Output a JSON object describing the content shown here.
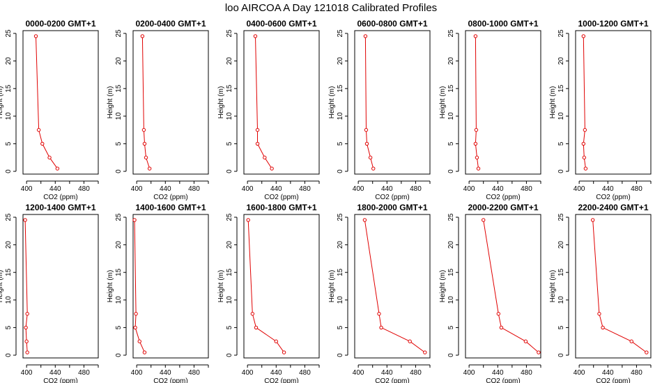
{
  "chart_data": {
    "type": "line",
    "title": "loo AIRCOA A  Day 121018  Calibrated Profiles",
    "xlabel": "CO2 (ppm)",
    "ylabel": "Height (m)",
    "xlim": [
      395,
      500
    ],
    "ylim": [
      -0.5,
      25.5
    ],
    "xticks": [
      400,
      440,
      480
    ],
    "yticks": [
      0,
      5,
      10,
      15,
      20,
      25
    ],
    "grid": false,
    "line_color": "#e00000",
    "layout": {
      "rows": 2,
      "cols": 6
    },
    "panels": [
      {
        "title": "0000-0200 GMT+1",
        "points": [
          [
            413,
            24.5
          ],
          [
            417,
            7.5
          ],
          [
            422,
            5
          ],
          [
            432,
            2.5
          ],
          [
            443,
            0.5
          ]
        ]
      },
      {
        "title": "0200-0400 GMT+1",
        "points": [
          [
            408,
            24.5
          ],
          [
            410,
            7.5
          ],
          [
            411,
            5
          ],
          [
            413,
            2.5
          ],
          [
            418,
            0.5
          ]
        ]
      },
      {
        "title": "0400-0600 GMT+1",
        "points": [
          [
            411,
            24.5
          ],
          [
            414,
            7.5
          ],
          [
            414,
            5
          ],
          [
            424,
            2.5
          ],
          [
            434,
            0.5
          ]
        ]
      },
      {
        "title": "0600-0800 GMT+1",
        "points": [
          [
            410,
            24.5
          ],
          [
            411,
            7.5
          ],
          [
            412,
            5
          ],
          [
            417,
            2.5
          ],
          [
            421,
            0.5
          ]
        ]
      },
      {
        "title": "0800-1000 GMT+1",
        "points": [
          [
            409,
            24.5
          ],
          [
            410,
            7.5
          ],
          [
            409,
            5
          ],
          [
            411,
            2.5
          ],
          [
            413,
            0.5
          ]
        ]
      },
      {
        "title": "1000-1200 GMT+1",
        "points": [
          [
            406,
            24.5
          ],
          [
            408,
            7.5
          ],
          [
            406,
            5
          ],
          [
            407,
            2.5
          ],
          [
            409,
            0.5
          ]
        ]
      },
      {
        "title": "1200-1400 GMT+1",
        "points": [
          [
            398,
            24.5
          ],
          [
            401,
            7.5
          ],
          [
            399,
            5
          ],
          [
            400,
            2.5
          ],
          [
            401,
            0.5
          ]
        ]
      },
      {
        "title": "1400-1600 GMT+1",
        "points": [
          [
            397,
            24.5
          ],
          [
            399,
            7.5
          ],
          [
            398,
            5
          ],
          [
            404,
            2.5
          ],
          [
            411,
            0.5
          ]
        ]
      },
      {
        "title": "1600-1800 GMT+1",
        "points": [
          [
            401,
            24.5
          ],
          [
            407,
            7.5
          ],
          [
            412,
            5
          ],
          [
            440,
            2.5
          ],
          [
            451,
            0.5
          ]
        ]
      },
      {
        "title": "1800-2000 GMT+1",
        "points": [
          [
            409,
            24.5
          ],
          [
            429,
            7.5
          ],
          [
            432,
            5
          ],
          [
            472,
            2.5
          ],
          [
            493,
            0.5
          ]
        ]
      },
      {
        "title": "2000-2200 GMT+1",
        "points": [
          [
            420,
            24.5
          ],
          [
            441,
            7.5
          ],
          [
            445,
            5
          ],
          [
            479,
            2.5
          ],
          [
            497,
            0.5
          ]
        ]
      },
      {
        "title": "2200-2400 GMT+1",
        "points": [
          [
            419,
            24.5
          ],
          [
            428,
            7.5
          ],
          [
            433,
            5
          ],
          [
            473,
            2.5
          ],
          [
            494,
            0.5
          ]
        ]
      }
    ]
  }
}
